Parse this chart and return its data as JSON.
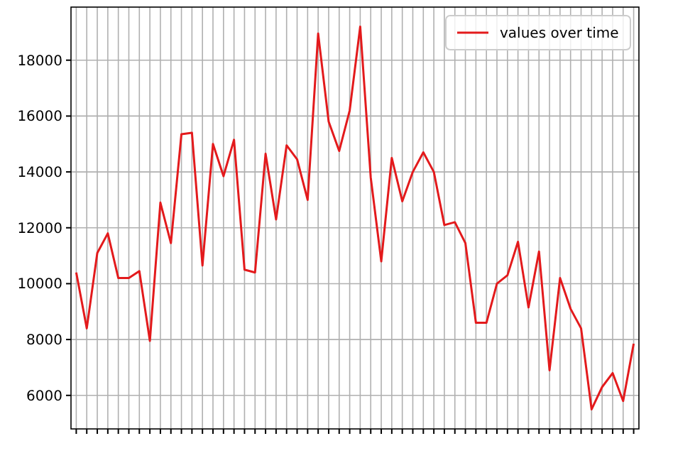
{
  "chart_data": {
    "type": "line",
    "categories": [
      null,
      null,
      null,
      null,
      null,
      null,
      null,
      null,
      null,
      null,
      null,
      null,
      null,
      null,
      null,
      null,
      null,
      null,
      null,
      null,
      null,
      null,
      null,
      null,
      null,
      null,
      null,
      null,
      null,
      null,
      null,
      null,
      null,
      null,
      null,
      null,
      null,
      null,
      null,
      null,
      null,
      null,
      null,
      null,
      null,
      null,
      null,
      null,
      null,
      null,
      null,
      null,
      null,
      null
    ],
    "series": [
      {
        "name": "values over time",
        "color": "#e31a1c",
        "values": [
          10400,
          8400,
          11100,
          11800,
          10200,
          10200,
          10450,
          7950,
          12900,
          11450,
          15350,
          15400,
          10650,
          15000,
          13850,
          15150,
          10500,
          10400,
          14650,
          12300,
          14950,
          14450,
          13000,
          18950,
          15800,
          14750,
          16200,
          19200,
          13800,
          10800,
          14500,
          12950,
          14000,
          14700,
          14000,
          12100,
          12200,
          11450,
          8600,
          8600,
          10000,
          10300,
          11500,
          9150,
          11150,
          6900,
          10200,
          9100,
          8400,
          5500,
          6300,
          6800,
          5800,
          7850
        ]
      }
    ],
    "ylim": [
      4800,
      19900
    ],
    "yticks": [
      6000,
      8000,
      10000,
      12000,
      14000,
      16000,
      18000
    ],
    "grid": true,
    "legend": "top right",
    "tick_labels": "y",
    "line_style": "solid",
    "marker": "none"
  }
}
